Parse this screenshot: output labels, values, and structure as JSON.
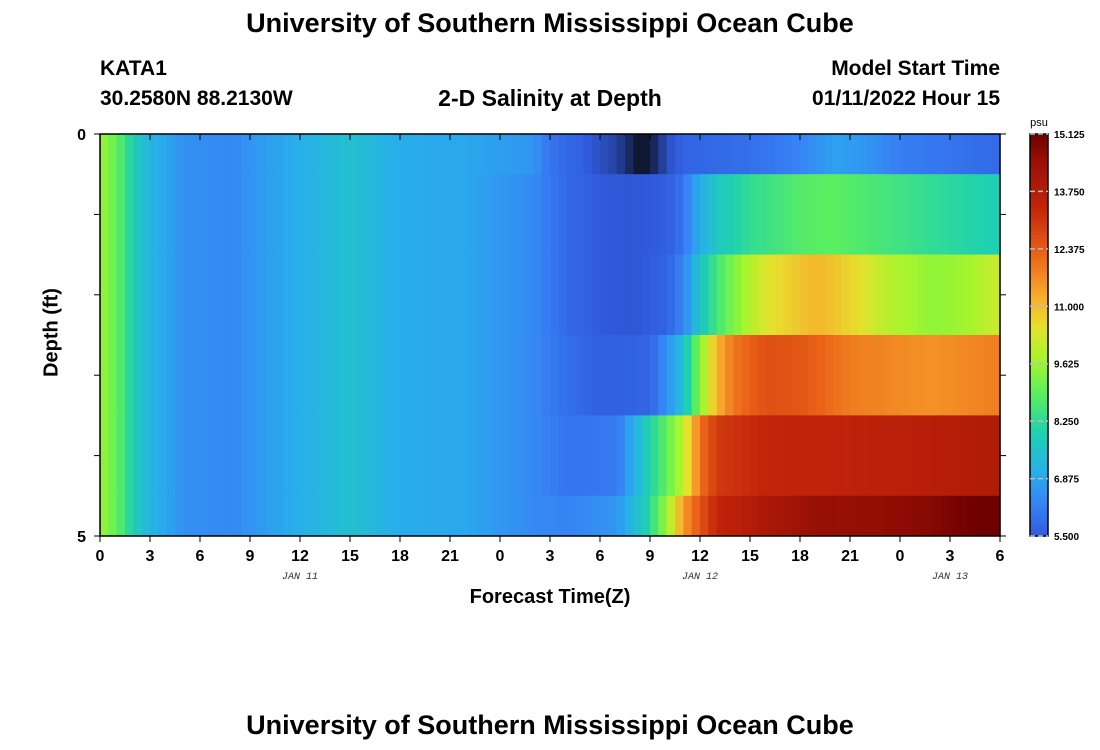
{
  "header": {
    "title": "University of Southern Mississippi Ocean Cube",
    "station_id": "KATA1",
    "coords": "30.2580N  88.2130W",
    "plot_title": "2-D Salinity at Depth",
    "model_label": "Model Start Time",
    "model_time": "01/11/2022 Hour 15"
  },
  "footer": {
    "title": "University of Southern Mississippi Ocean Cube"
  },
  "chart_data": {
    "type": "heatmap",
    "title": "2-D Salinity at Depth",
    "xlabel": "Forecast Time(Z)",
    "ylabel": "Depth (ft)",
    "x_tick_labels": [
      "0",
      "3",
      "6",
      "9",
      "12",
      "15",
      "18",
      "21",
      "0",
      "3",
      "6",
      "9",
      "12",
      "15",
      "18",
      "21",
      "0",
      "3",
      "6"
    ],
    "date_labels": [
      {
        "text": "JAN 11",
        "tick_index": 4
      },
      {
        "text": "JAN 12",
        "tick_index": 12
      },
      {
        "text": "JAN 13",
        "tick_index": 17
      }
    ],
    "y_tick_labels": [
      "0",
      "5"
    ],
    "ylim": [
      0,
      5
    ],
    "x_range_hours": [
      0,
      54
    ],
    "depth_levels": [
      0,
      1,
      2,
      3,
      4,
      5
    ],
    "colorbar": {
      "unit": "psu",
      "min": 5.5,
      "max": 15.125,
      "tick_labels": [
        "15.125",
        "13.750",
        "12.375",
        "11.000",
        "9.625",
        "8.250",
        "6.875",
        "5.500"
      ],
      "tick_values": [
        15.125,
        13.75,
        12.375,
        11.0,
        9.625,
        8.25,
        6.875,
        5.5
      ]
    },
    "layers": [
      {
        "depth_range": [
          0,
          0.5
        ],
        "points": [
          [
            0,
            9.6
          ],
          [
            1,
            9.0
          ],
          [
            2,
            7.9
          ],
          [
            3,
            7.2
          ],
          [
            5,
            6.5
          ],
          [
            8,
            6.4
          ],
          [
            11,
            6.9
          ],
          [
            15,
            7.5
          ],
          [
            18,
            7.0
          ],
          [
            22,
            6.9
          ],
          [
            26,
            6.6
          ],
          [
            27,
            6.0
          ],
          [
            29,
            5.6
          ],
          [
            30,
            5.2
          ],
          [
            31,
            4.8
          ],
          [
            32,
            3.8
          ],
          [
            32.5,
            3.2
          ],
          [
            33,
            3.8
          ],
          [
            33.5,
            4.2
          ],
          [
            34,
            5.2
          ],
          [
            35,
            5.7
          ],
          [
            39,
            5.9
          ],
          [
            42,
            6.3
          ],
          [
            44,
            6.8
          ],
          [
            46,
            6.6
          ],
          [
            48,
            6.2
          ],
          [
            51,
            6.0
          ],
          [
            54,
            5.8
          ]
        ]
      },
      {
        "depth_range": [
          0.5,
          1.5
        ],
        "points": [
          [
            0,
            9.6
          ],
          [
            1,
            9.0
          ],
          [
            2,
            7.9
          ],
          [
            3,
            7.2
          ],
          [
            5,
            6.5
          ],
          [
            8,
            6.4
          ],
          [
            11,
            6.9
          ],
          [
            15,
            7.5
          ],
          [
            18,
            7.0
          ],
          [
            22,
            6.9
          ],
          [
            26,
            6.4
          ],
          [
            28,
            5.8
          ],
          [
            30,
            5.5
          ],
          [
            32,
            5.4
          ],
          [
            34,
            5.6
          ],
          [
            35,
            6.0
          ],
          [
            35.5,
            6.6
          ],
          [
            36,
            7.0
          ],
          [
            37,
            7.7
          ],
          [
            39,
            8.3
          ],
          [
            42,
            8.8
          ],
          [
            44,
            8.9
          ],
          [
            47,
            8.6
          ],
          [
            50,
            8.3
          ],
          [
            54,
            7.9
          ]
        ]
      },
      {
        "depth_range": [
          1.5,
          2.5
        ],
        "points": [
          [
            0,
            9.6
          ],
          [
            1,
            9.0
          ],
          [
            2,
            7.9
          ],
          [
            3,
            7.2
          ],
          [
            5,
            6.5
          ],
          [
            8,
            6.4
          ],
          [
            11,
            6.9
          ],
          [
            15,
            7.5
          ],
          [
            18,
            7.0
          ],
          [
            22,
            6.9
          ],
          [
            26,
            6.4
          ],
          [
            28,
            5.8
          ],
          [
            30,
            5.5
          ],
          [
            32,
            5.4
          ],
          [
            34,
            5.7
          ],
          [
            35,
            6.3
          ],
          [
            36,
            7.6
          ],
          [
            37,
            8.6
          ],
          [
            38,
            9.3
          ],
          [
            39,
            9.9
          ],
          [
            40,
            10.4
          ],
          [
            42,
            10.9
          ],
          [
            43,
            11.1
          ],
          [
            45,
            10.7
          ],
          [
            47,
            10.0
          ],
          [
            50,
            9.5
          ],
          [
            52,
            9.7
          ],
          [
            54,
            10.2
          ]
        ]
      },
      {
        "depth_range": [
          2.5,
          3.5
        ],
        "points": [
          [
            0,
            9.6
          ],
          [
            1,
            9.0
          ],
          [
            2,
            7.9
          ],
          [
            3,
            7.2
          ],
          [
            5,
            6.5
          ],
          [
            8,
            6.4
          ],
          [
            11,
            6.9
          ],
          [
            15,
            7.5
          ],
          [
            18,
            7.0
          ],
          [
            22,
            6.9
          ],
          [
            26,
            6.4
          ],
          [
            28,
            5.9
          ],
          [
            30,
            5.6
          ],
          [
            33,
            5.7
          ],
          [
            34,
            6.5
          ],
          [
            35,
            7.5
          ],
          [
            35.5,
            8.5
          ],
          [
            36,
            9.3
          ],
          [
            36.5,
            10.3
          ],
          [
            37,
            11.1
          ],
          [
            38,
            12.0
          ],
          [
            40,
            12.6
          ],
          [
            42,
            12.5
          ],
          [
            45,
            11.9
          ],
          [
            50,
            11.6
          ],
          [
            54,
            11.9
          ]
        ]
      },
      {
        "depth_range": [
          3.5,
          4.5
        ],
        "points": [
          [
            0,
            9.6
          ],
          [
            1,
            9.0
          ],
          [
            2,
            7.9
          ],
          [
            3,
            7.2
          ],
          [
            5,
            6.5
          ],
          [
            8,
            6.4
          ],
          [
            11,
            6.9
          ],
          [
            15,
            7.5
          ],
          [
            18,
            7.0
          ],
          [
            22,
            6.9
          ],
          [
            26,
            6.4
          ],
          [
            28,
            6.0
          ],
          [
            31,
            6.1
          ],
          [
            32,
            7.0
          ],
          [
            33,
            8.0
          ],
          [
            34,
            9.0
          ],
          [
            35,
            10.0
          ],
          [
            35.5,
            11.0
          ],
          [
            36,
            12.0
          ],
          [
            37,
            13.0
          ],
          [
            40,
            13.4
          ],
          [
            45,
            13.5
          ],
          [
            50,
            13.7
          ],
          [
            54,
            13.9
          ]
        ]
      },
      {
        "depth_range": [
          4.5,
          5
        ],
        "points": [
          [
            0,
            9.6
          ],
          [
            1,
            9.0
          ],
          [
            2,
            7.9
          ],
          [
            3,
            7.2
          ],
          [
            5,
            6.5
          ],
          [
            8,
            6.4
          ],
          [
            11,
            6.9
          ],
          [
            15,
            7.5
          ],
          [
            18,
            7.0
          ],
          [
            22,
            6.9
          ],
          [
            26,
            6.4
          ],
          [
            28,
            6.3
          ],
          [
            31,
            6.6
          ],
          [
            32,
            7.3
          ],
          [
            33,
            8.1
          ],
          [
            33.5,
            9.0
          ],
          [
            34,
            9.6
          ],
          [
            34.5,
            10.6
          ],
          [
            35,
            11.5
          ],
          [
            36,
            12.5
          ],
          [
            37,
            13.4
          ],
          [
            40,
            14.0
          ],
          [
            43,
            14.5
          ],
          [
            47,
            14.6
          ],
          [
            50,
            14.8
          ],
          [
            54,
            15.3
          ]
        ]
      }
    ]
  }
}
